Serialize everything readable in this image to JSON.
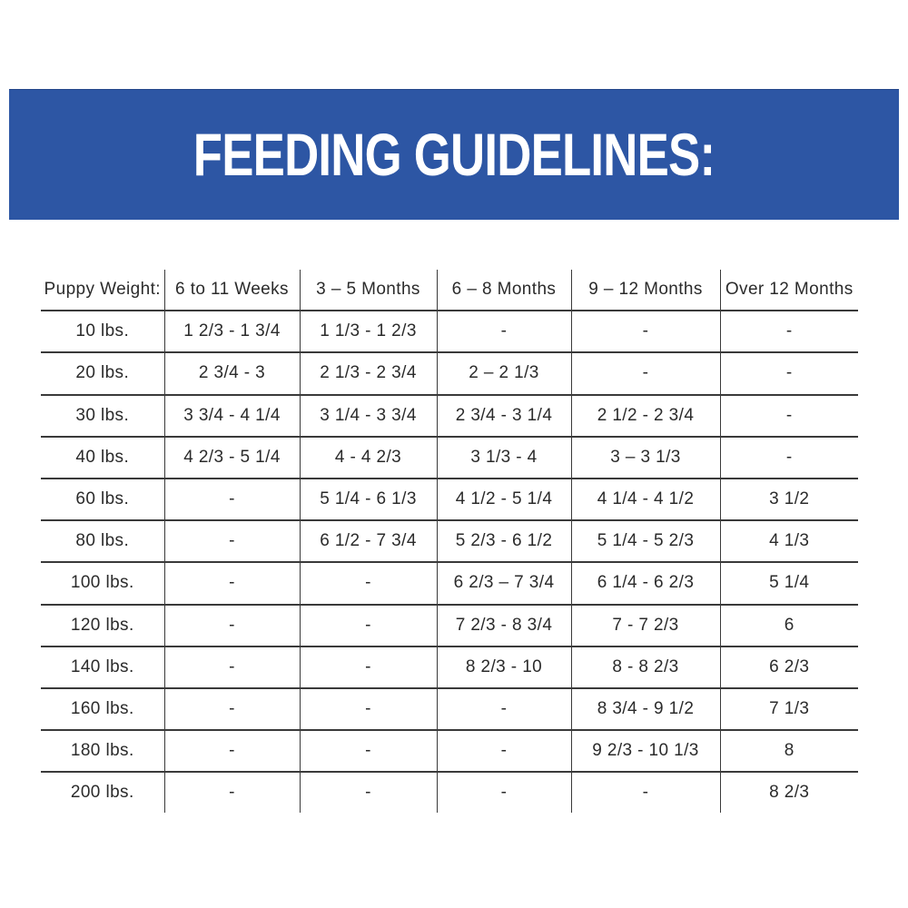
{
  "banner": {
    "title": "FEEDING GUIDELINES:",
    "bg_color": "#2d56a4",
    "text_color": "#ffffff"
  },
  "chart_data": {
    "type": "table",
    "title": "FEEDING GUIDELINES:",
    "columns": [
      "Puppy Weight:",
      "6 to 11 Weeks",
      "3 – 5 Months",
      "6 – 8 Months",
      "9 – 12 Months",
      "Over 12 Months"
    ],
    "rows": [
      {
        "weight": "10 lbs.",
        "values": [
          "1 2/3 - 1 3/4",
          "1 1/3 - 1 2/3",
          "-",
          "-",
          "-"
        ]
      },
      {
        "weight": "20 lbs.",
        "values": [
          "2 3/4 - 3",
          "2 1/3 - 2 3/4",
          "2 – 2 1/3",
          "-",
          "-"
        ]
      },
      {
        "weight": "30 lbs.",
        "values": [
          "3 3/4 - 4 1/4",
          "3 1/4 - 3 3/4",
          "2 3/4 - 3 1/4",
          "2 1/2 - 2 3/4",
          "-"
        ]
      },
      {
        "weight": "40 lbs.",
        "values": [
          "4 2/3 - 5 1/4",
          "4 - 4 2/3",
          "3 1/3 - 4",
          "3 – 3 1/3",
          "-"
        ]
      },
      {
        "weight": "60 lbs.",
        "values": [
          "-",
          "5 1/4 - 6 1/3",
          "4 1/2 - 5 1/4",
          "4 1/4 - 4 1/2",
          "3 1/2"
        ]
      },
      {
        "weight": "80 lbs.",
        "values": [
          "-",
          "6 1/2 - 7 3/4",
          "5 2/3 - 6 1/2",
          "5 1/4 - 5 2/3",
          "4 1/3"
        ]
      },
      {
        "weight": "100 lbs.",
        "values": [
          "-",
          "-",
          "6 2/3 – 7 3/4",
          "6 1/4 - 6 2/3",
          "5 1/4"
        ]
      },
      {
        "weight": "120 lbs.",
        "values": [
          "-",
          "-",
          "7 2/3 - 8 3/4",
          "7 - 7 2/3",
          "6"
        ]
      },
      {
        "weight": "140 lbs.",
        "values": [
          "-",
          "-",
          "8 2/3 - 10",
          "8 - 8 2/3",
          "6 2/3"
        ]
      },
      {
        "weight": "160 lbs.",
        "values": [
          "-",
          "-",
          "-",
          "8 3/4 - 9 1/2",
          "7 1/3"
        ]
      },
      {
        "weight": "180 lbs.",
        "values": [
          "-",
          "-",
          "-",
          "9 2/3 - 10 1/3",
          "8"
        ]
      },
      {
        "weight": "200 lbs.",
        "values": [
          "-",
          "-",
          "-",
          "-",
          "8 2/3"
        ]
      }
    ],
    "colors": {
      "banner_blue": "#2d56a4",
      "line": "#3a3a3a",
      "text": "#2b2b2b"
    },
    "layout_hints": {
      "grid": "horizontal row separators + vertical column separators, no outer border",
      "legend": "none"
    }
  }
}
